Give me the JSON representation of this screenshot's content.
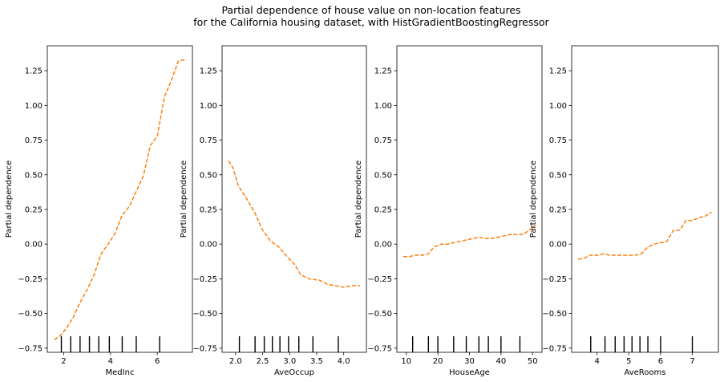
{
  "figure": {
    "title_line1": "Partial dependence of house value on non-location features",
    "title_line2": "for the California housing dataset, with HistGradientBoostingRegressor"
  },
  "chart_data": [
    {
      "type": "line",
      "xlabel": "MedInc",
      "ylabel": "Partial dependence",
      "xlim": [
        1.3,
        7.5
      ],
      "ylim": [
        -0.78,
        1.43
      ],
      "xticks": [
        2,
        4,
        6
      ],
      "yticks": [
        -0.75,
        -0.5,
        -0.25,
        0.0,
        0.25,
        0.5,
        0.75,
        1.0,
        1.25
      ],
      "ytick_labels": [
        "−0.75",
        "−0.50",
        "−0.25",
        "0.00",
        "0.25",
        "0.50",
        "0.75",
        "1.00",
        "1.25"
      ],
      "line_color": "#ff7f0e",
      "line_style": "dashed",
      "deciles": [
        1.9,
        2.3,
        2.7,
        3.1,
        3.5,
        3.95,
        4.5,
        5.1,
        6.1
      ],
      "x": [
        1.6,
        1.85,
        2.1,
        2.4,
        2.7,
        3.0,
        3.3,
        3.6,
        3.9,
        4.2,
        4.5,
        4.8,
        5.1,
        5.4,
        5.7,
        6.0,
        6.3,
        6.6,
        6.9,
        7.2
      ],
      "y": [
        -0.69,
        -0.66,
        -0.61,
        -0.53,
        -0.42,
        -0.33,
        -0.22,
        -0.07,
        0.0,
        0.08,
        0.21,
        0.27,
        0.38,
        0.49,
        0.71,
        0.78,
        1.06,
        1.18,
        1.32,
        1.33
      ]
    },
    {
      "type": "line",
      "xlabel": "AveOccup",
      "ylabel": "Partial dependence",
      "xlim": [
        1.75,
        4.42
      ],
      "ylim": [
        -0.78,
        1.43
      ],
      "xticks": [
        2.0,
        2.5,
        3.0,
        3.5,
        4.0
      ],
      "xtick_labels": [
        "2.0",
        "2.5",
        "3.0",
        "3.5",
        "4.0"
      ],
      "yticks": [
        -0.75,
        -0.5,
        -0.25,
        0.0,
        0.25,
        0.5,
        0.75,
        1.0,
        1.25
      ],
      "ytick_labels": [
        "−0.75",
        "−0.50",
        "−0.25",
        "0.00",
        "0.25",
        "0.50",
        "0.75",
        "1.00",
        "1.25"
      ],
      "line_color": "#ff7f0e",
      "line_style": "dashed",
      "deciles": [
        2.07,
        2.36,
        2.53,
        2.68,
        2.82,
        2.98,
        3.17,
        3.43,
        3.9
      ],
      "x": [
        1.87,
        1.95,
        2.05,
        2.2,
        2.35,
        2.5,
        2.65,
        2.8,
        2.95,
        3.1,
        3.2,
        3.35,
        3.55,
        3.7,
        3.85,
        4.0,
        4.15,
        4.3
      ],
      "y": [
        0.6,
        0.55,
        0.42,
        0.33,
        0.23,
        0.1,
        0.02,
        -0.02,
        -0.09,
        -0.15,
        -0.22,
        -0.25,
        -0.26,
        -0.29,
        -0.3,
        -0.31,
        -0.3,
        -0.3
      ]
    },
    {
      "type": "line",
      "xlabel": "HouseAge",
      "ylabel": "Partial dependence",
      "xlim": [
        7.0,
        53.0
      ],
      "ylim": [
        -0.78,
        1.43
      ],
      "xticks": [
        10,
        20,
        30,
        40,
        50
      ],
      "yticks": [
        -0.75,
        -0.5,
        -0.25,
        0.0,
        0.25,
        0.5,
        0.75,
        1.0,
        1.25
      ],
      "ytick_labels": [
        "−0.75",
        "−0.50",
        "−0.25",
        "0.00",
        "0.25",
        "0.50",
        "0.75",
        "1.00",
        "1.25"
      ],
      "line_color": "#ff7f0e",
      "line_style": "dashed",
      "deciles": [
        12,
        17,
        20,
        25,
        29,
        33,
        36,
        40,
        46
      ],
      "x": [
        9,
        11,
        13,
        15,
        17,
        18,
        19,
        20,
        21,
        23,
        25,
        27,
        29,
        31,
        33,
        35,
        37,
        39,
        41,
        43,
        45,
        47,
        49,
        51
      ],
      "y": [
        -0.09,
        -0.09,
        -0.08,
        -0.08,
        -0.07,
        -0.04,
        -0.02,
        -0.01,
        0.0,
        0.0,
        0.01,
        0.02,
        0.03,
        0.04,
        0.05,
        0.04,
        0.04,
        0.05,
        0.06,
        0.07,
        0.07,
        0.07,
        0.1,
        0.14
      ]
    },
    {
      "type": "line",
      "xlabel": "AveRooms",
      "ylabel": "Partial dependence",
      "xlim": [
        3.2,
        7.82
      ],
      "ylim": [
        -0.78,
        1.43
      ],
      "xticks": [
        4,
        5,
        6,
        7
      ],
      "yticks": [
        -0.75,
        -0.5,
        -0.25,
        0.0,
        0.25,
        0.5,
        0.75,
        1.0,
        1.25
      ],
      "ytick_labels": [
        "−0.75",
        "−0.50",
        "−0.25",
        "0.00",
        "0.25",
        "0.50",
        "0.75",
        "1.00",
        "1.25"
      ],
      "line_color": "#ff7f0e",
      "line_style": "dashed",
      "deciles": [
        3.8,
        4.25,
        4.57,
        4.85,
        5.1,
        5.35,
        5.6,
        6.0,
        7.0
      ],
      "x": [
        3.4,
        3.6,
        3.8,
        4.0,
        4.2,
        4.4,
        4.6,
        4.8,
        5.0,
        5.2,
        5.4,
        5.6,
        5.8,
        6.0,
        6.2,
        6.4,
        6.6,
        6.8,
        7.0,
        7.2,
        7.4,
        7.6
      ],
      "y": [
        -0.11,
        -0.1,
        -0.08,
        -0.08,
        -0.07,
        -0.08,
        -0.08,
        -0.08,
        -0.08,
        -0.08,
        -0.07,
        -0.02,
        0.0,
        0.01,
        0.02,
        0.1,
        0.1,
        0.17,
        0.17,
        0.19,
        0.2,
        0.23
      ]
    }
  ]
}
